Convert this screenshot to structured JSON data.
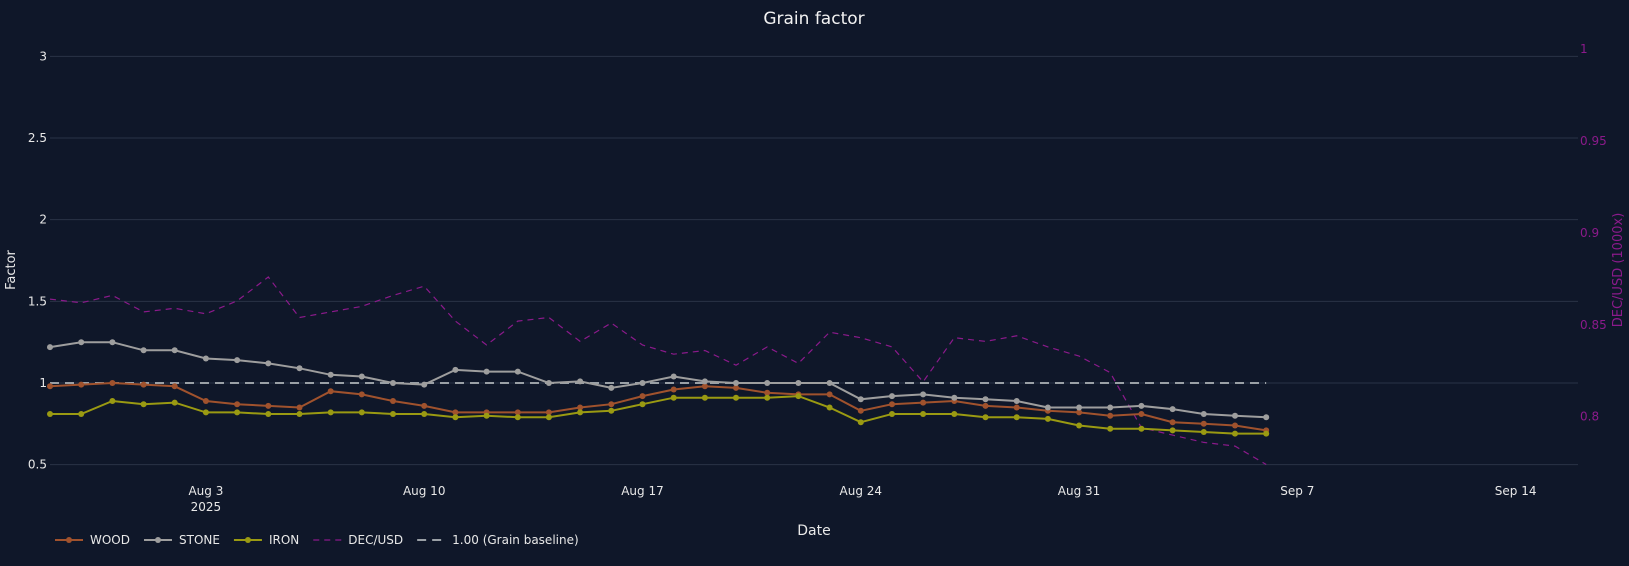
{
  "chart_data": {
    "type": "line",
    "title": "Grain factor",
    "xlabel": "Date",
    "ylabel": "Factor",
    "y2label": "DEC/USD (1000x)",
    "xlim": [
      "2025-07-29",
      "2025-09-16"
    ],
    "ylim": [
      0.4,
      3.1
    ],
    "y2lim": [
      0.765,
      1.005
    ],
    "x_ticks": [
      "Aug 3",
      "Aug 10",
      "Aug 17",
      "Aug 24",
      "Aug 31",
      "Sep 7",
      "Sep 14"
    ],
    "x_tick_year": "2025",
    "y_ticks": [
      "0.5",
      "1",
      "1.5",
      "2",
      "2.5",
      "3"
    ],
    "y2_ticks": [
      "0.8",
      "0.85",
      "0.9",
      "0.95",
      "1"
    ],
    "grid": true,
    "legend_position": "bottom-left",
    "baseline": {
      "name": "1.00 (Grain baseline)",
      "value": 1.0,
      "color": "#9aa0a6"
    },
    "series": [
      {
        "name": "WOOD",
        "axis": "y",
        "style": "line+markers",
        "color": "#a0522d",
        "x": [
          "2025-07-29",
          "2025-07-30",
          "2025-07-31",
          "2025-08-01",
          "2025-08-02",
          "2025-08-03",
          "2025-08-04",
          "2025-08-05",
          "2025-08-06",
          "2025-08-07",
          "2025-08-08",
          "2025-08-09",
          "2025-08-10",
          "2025-08-11",
          "2025-08-12",
          "2025-08-13",
          "2025-08-14",
          "2025-08-15",
          "2025-08-16",
          "2025-08-17",
          "2025-08-18",
          "2025-08-19",
          "2025-08-20",
          "2025-08-21",
          "2025-08-22",
          "2025-08-23",
          "2025-08-24",
          "2025-08-25",
          "2025-08-26",
          "2025-08-27",
          "2025-08-28",
          "2025-08-29",
          "2025-08-30",
          "2025-08-31",
          "2025-09-01",
          "2025-09-02",
          "2025-09-03",
          "2025-09-04",
          "2025-09-05",
          "2025-09-06"
        ],
        "values": [
          0.98,
          0.99,
          1.0,
          0.99,
          0.98,
          0.89,
          0.87,
          0.86,
          0.85,
          0.95,
          0.93,
          0.89,
          0.86,
          0.82,
          0.82,
          0.82,
          0.82,
          0.85,
          0.87,
          0.92,
          0.96,
          0.98,
          0.97,
          0.94,
          0.93,
          0.93,
          0.83,
          0.87,
          0.88,
          0.89,
          0.86,
          0.85,
          0.83,
          0.82,
          0.8,
          0.81,
          0.76,
          0.75,
          0.74,
          0.71
        ]
      },
      {
        "name": "STONE",
        "axis": "y",
        "style": "line+markers",
        "color": "#9e9e9e",
        "x": [
          "2025-07-29",
          "2025-07-30",
          "2025-07-31",
          "2025-08-01",
          "2025-08-02",
          "2025-08-03",
          "2025-08-04",
          "2025-08-05",
          "2025-08-06",
          "2025-08-07",
          "2025-08-08",
          "2025-08-09",
          "2025-08-10",
          "2025-08-11",
          "2025-08-12",
          "2025-08-13",
          "2025-08-14",
          "2025-08-15",
          "2025-08-16",
          "2025-08-17",
          "2025-08-18",
          "2025-08-19",
          "2025-08-20",
          "2025-08-21",
          "2025-08-22",
          "2025-08-23",
          "2025-08-24",
          "2025-08-25",
          "2025-08-26",
          "2025-08-27",
          "2025-08-28",
          "2025-08-29",
          "2025-08-30",
          "2025-08-31",
          "2025-09-01",
          "2025-09-02",
          "2025-09-03",
          "2025-09-04",
          "2025-09-05",
          "2025-09-06"
        ],
        "values": [
          1.22,
          1.25,
          1.25,
          1.2,
          1.2,
          1.15,
          1.14,
          1.12,
          1.09,
          1.05,
          1.04,
          1.0,
          0.99,
          1.08,
          1.07,
          1.07,
          1.0,
          1.01,
          0.97,
          1.0,
          1.04,
          1.01,
          1.0,
          1.0,
          1.0,
          1.0,
          0.9,
          0.92,
          0.93,
          0.91,
          0.9,
          0.89,
          0.85,
          0.85,
          0.85,
          0.86,
          0.84,
          0.81,
          0.8,
          0.79
        ]
      },
      {
        "name": "IRON",
        "axis": "y",
        "style": "line+markers",
        "color": "#9a9a12",
        "x": [
          "2025-07-29",
          "2025-07-30",
          "2025-07-31",
          "2025-08-01",
          "2025-08-02",
          "2025-08-03",
          "2025-08-04",
          "2025-08-05",
          "2025-08-06",
          "2025-08-07",
          "2025-08-08",
          "2025-08-09",
          "2025-08-10",
          "2025-08-11",
          "2025-08-12",
          "2025-08-13",
          "2025-08-14",
          "2025-08-15",
          "2025-08-16",
          "2025-08-17",
          "2025-08-18",
          "2025-08-19",
          "2025-08-20",
          "2025-08-21",
          "2025-08-22",
          "2025-08-23",
          "2025-08-24",
          "2025-08-25",
          "2025-08-26",
          "2025-08-27",
          "2025-08-28",
          "2025-08-29",
          "2025-08-30",
          "2025-08-31",
          "2025-09-01",
          "2025-09-02",
          "2025-09-03",
          "2025-09-04",
          "2025-09-05",
          "2025-09-06"
        ],
        "values": [
          0.81,
          0.81,
          0.89,
          0.87,
          0.88,
          0.82,
          0.82,
          0.81,
          0.81,
          0.82,
          0.82,
          0.81,
          0.81,
          0.79,
          0.8,
          0.79,
          0.79,
          0.82,
          0.83,
          0.87,
          0.91,
          0.91,
          0.91,
          0.91,
          0.92,
          0.85,
          0.76,
          0.81,
          0.81,
          0.81,
          0.79,
          0.79,
          0.78,
          0.74,
          0.72,
          0.72,
          0.71,
          0.7,
          0.69,
          0.69
        ]
      },
      {
        "name": "DEC/USD",
        "axis": "y2",
        "style": "dash",
        "color": "#8b1a8b",
        "x": [
          "2025-07-29",
          "2025-07-30",
          "2025-07-31",
          "2025-08-01",
          "2025-08-02",
          "2025-08-03",
          "2025-08-04",
          "2025-08-05",
          "2025-08-06",
          "2025-08-07",
          "2025-08-08",
          "2025-08-09",
          "2025-08-10",
          "2025-08-11",
          "2025-08-12",
          "2025-08-13",
          "2025-08-14",
          "2025-08-15",
          "2025-08-16",
          "2025-08-17",
          "2025-08-18",
          "2025-08-19",
          "2025-08-20",
          "2025-08-21",
          "2025-08-22",
          "2025-08-23",
          "2025-08-24",
          "2025-08-25",
          "2025-08-26",
          "2025-08-27",
          "2025-08-28",
          "2025-08-29",
          "2025-08-30",
          "2025-08-31",
          "2025-09-01",
          "2025-09-02",
          "2025-09-03",
          "2025-09-04",
          "2025-09-05",
          "2025-09-06"
        ],
        "values": [
          0.864,
          0.862,
          0.866,
          0.857,
          0.859,
          0.856,
          0.863,
          0.876,
          0.854,
          0.857,
          0.86,
          0.866,
          0.871,
          0.852,
          0.839,
          0.852,
          0.854,
          0.841,
          0.851,
          0.839,
          0.834,
          0.836,
          0.828,
          0.838,
          0.829,
          0.846,
          0.843,
          0.838,
          0.819,
          0.843,
          0.841,
          0.844,
          0.838,
          0.833,
          0.824,
          0.794,
          0.79,
          0.786,
          0.784,
          0.774
        ]
      }
    ]
  }
}
